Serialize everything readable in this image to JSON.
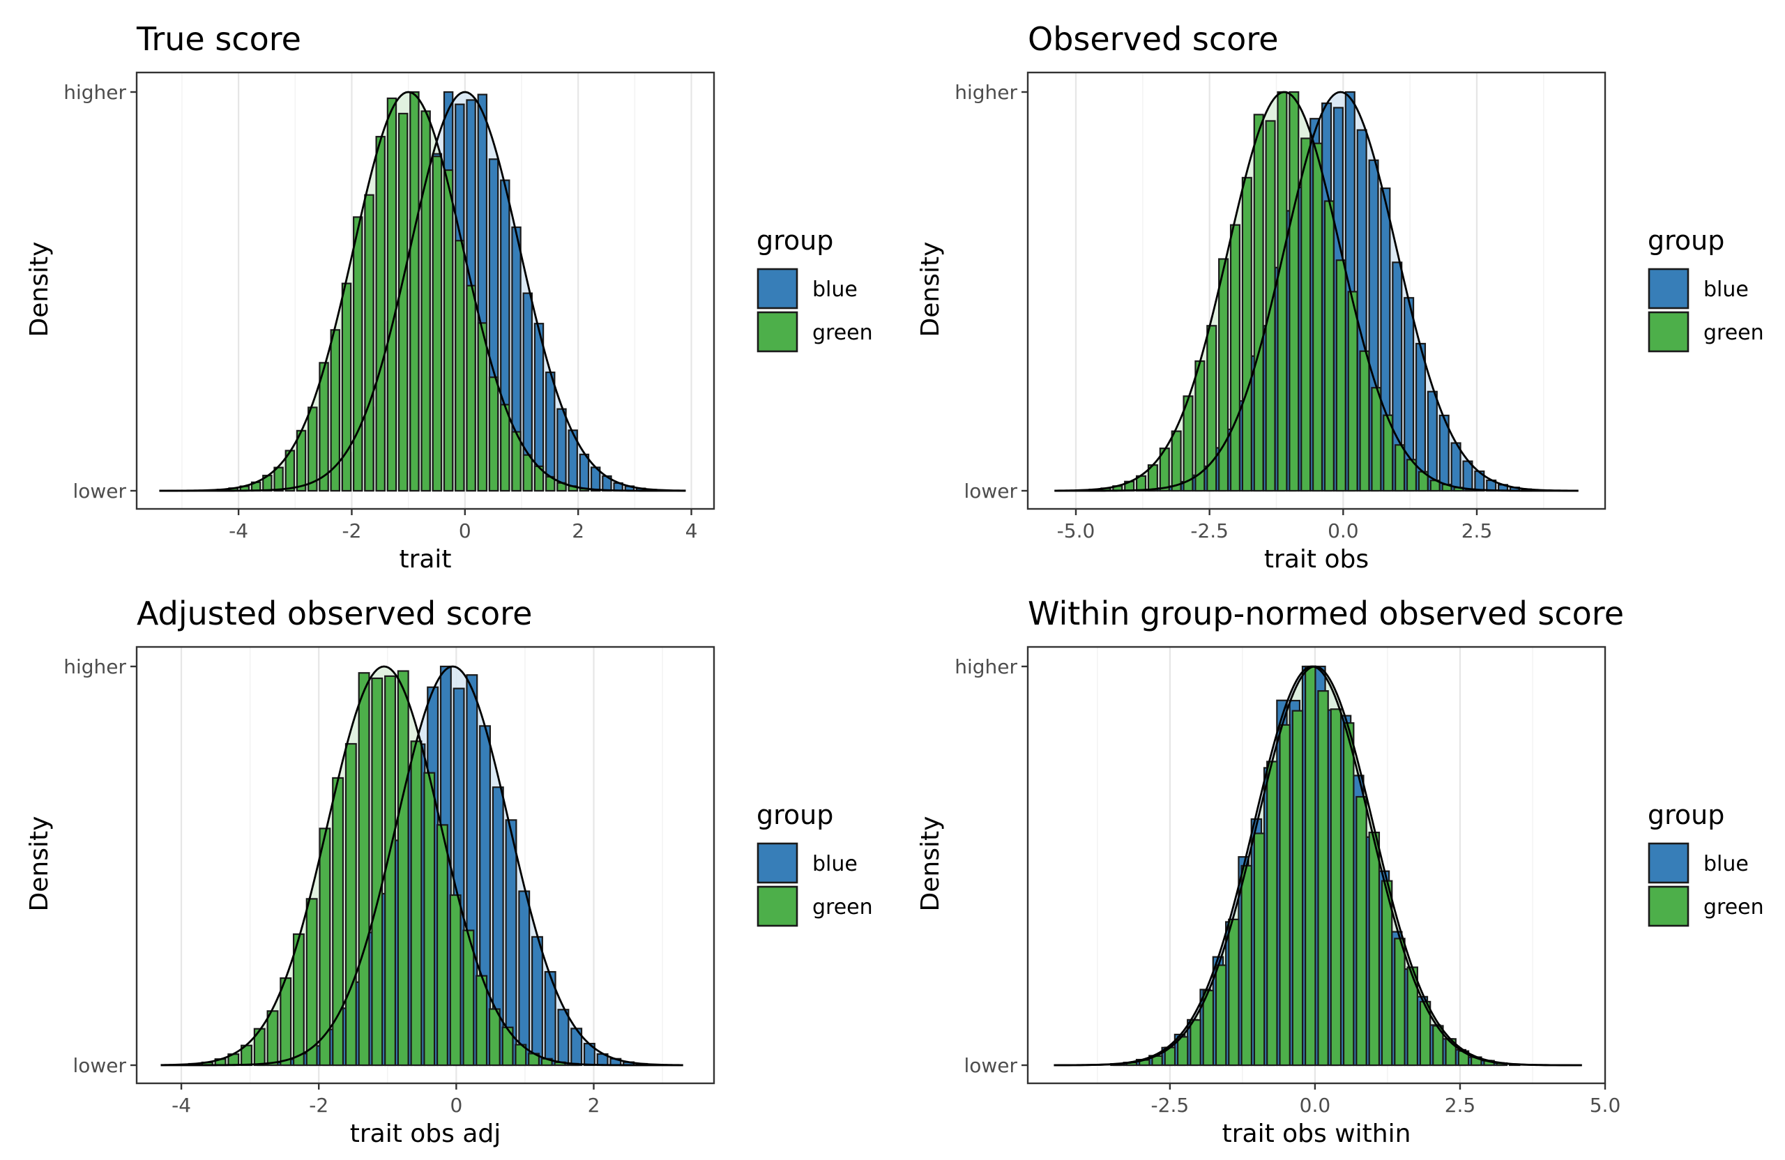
{
  "chart_data": [
    {
      "type": "bar",
      "title": "True score",
      "xlabel": "trait",
      "ylabel": "Density",
      "xlim": [
        -5.8,
        4.4
      ],
      "xticks": [
        -4,
        -2,
        0,
        2,
        4
      ],
      "xtick_labels": [
        "-4",
        "-2",
        "0",
        "2",
        "4"
      ],
      "yticks": [
        0,
        1
      ],
      "ytick_labels": [
        "lower",
        "higher"
      ],
      "grid": true,
      "bin_width": 0.2,
      "curve_range": [
        -5.4,
        3.9
      ],
      "legend": {
        "title": "group",
        "entries": [
          "blue",
          "green"
        ],
        "placement": "right"
      },
      "colors": {
        "blue": "#377EB8",
        "green": "#4DAF4A",
        "blue_fill": "#D6E5F2",
        "green_fill": "#DCEFDB"
      },
      "series": [
        {
          "name": "blue",
          "mean": 0,
          "sd": 0.97,
          "bar_scale": 1.0
        },
        {
          "name": "green",
          "mean": -1.0,
          "sd": 0.97,
          "bar_scale": 1.0
        }
      ]
    },
    {
      "type": "bar",
      "title": "Observed score",
      "xlabel": "trait obs",
      "ylabel": "Density",
      "xlim": [
        -5.9,
        4.9
      ],
      "xticks": [
        -5,
        -2.5,
        0,
        2.5
      ],
      "xtick_labels": [
        "-5.0",
        "-2.5",
        "0.0",
        "2.5"
      ],
      "yticks": [
        0,
        1
      ],
      "ytick_labels": [
        "lower",
        "higher"
      ],
      "grid": true,
      "bin_width": 0.22,
      "curve_range": [
        -5.4,
        4.4
      ],
      "legend": {
        "title": "group",
        "entries": [
          "blue",
          "green"
        ],
        "placement": "right"
      },
      "colors": {
        "blue": "#377EB8",
        "green": "#4DAF4A",
        "blue_fill": "#D6E5F2",
        "green_fill": "#DCEFDB"
      },
      "series": [
        {
          "name": "blue",
          "mean": -0.05,
          "sd": 1.05,
          "bar_scale": 1.0
        },
        {
          "name": "green",
          "mean": -1.1,
          "sd": 1.05,
          "bar_scale": 1.0
        }
      ]
    },
    {
      "type": "bar",
      "title": "Adjusted observed score",
      "xlabel": "trait obs adj",
      "ylabel": "Density",
      "xlim": [
        -4.65,
        3.75
      ],
      "xticks": [
        -4,
        -2,
        0,
        2
      ],
      "xtick_labels": [
        "-4",
        "-2",
        "0",
        "2"
      ],
      "yticks": [
        0,
        1
      ],
      "ytick_labels": [
        "lower",
        "higher"
      ],
      "grid": true,
      "bin_width": 0.19,
      "curve_range": [
        -4.3,
        3.3
      ],
      "legend": {
        "title": "group",
        "entries": [
          "blue",
          "green"
        ],
        "placement": "right"
      },
      "colors": {
        "blue": "#377EB8",
        "green": "#4DAF4A",
        "blue_fill": "#D6E5F2",
        "green_fill": "#DCEFDB"
      },
      "series": [
        {
          "name": "blue",
          "mean": -0.05,
          "sd": 0.82,
          "bar_scale": 1.0
        },
        {
          "name": "green",
          "mean": -1.05,
          "sd": 0.82,
          "bar_scale": 1.0
        }
      ]
    },
    {
      "type": "bar",
      "title": "Within group-normed observed score",
      "xlabel": "trait obs within",
      "ylabel": "Density",
      "xlim": [
        -4.95,
        5.0
      ],
      "xticks": [
        -2.5,
        0,
        2.5,
        5
      ],
      "xtick_labels": [
        "-2.5",
        "0.0",
        "2.5",
        "5.0"
      ],
      "yticks": [
        0,
        1
      ],
      "ytick_labels": [
        "lower",
        "higher"
      ],
      "grid": true,
      "bin_width": 0.22,
      "curve_range": [
        -4.5,
        4.6
      ],
      "legend": {
        "title": "group",
        "entries": [
          "blue",
          "green"
        ],
        "placement": "right"
      },
      "colors": {
        "blue": "#377EB8",
        "green": "#4DAF4A",
        "blue_fill": "#D6E5F2",
        "green_fill": "#DCEFDB"
      },
      "series": [
        {
          "name": "blue",
          "mean": -0.05,
          "sd": 1.0,
          "bar_scale": 1.0
        },
        {
          "name": "green",
          "mean": 0.0,
          "sd": 1.0,
          "bar_scale": 0.97
        }
      ]
    }
  ]
}
